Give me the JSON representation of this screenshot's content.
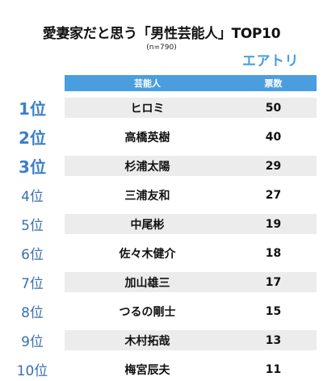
{
  "title": "愛妻家だと思う「男性芸能人」TOP10",
  "sample": "(n=790)",
  "logo": "エアトリ",
  "header": {
    "name": "芸能人",
    "votes": "票数"
  },
  "chart_data": {
    "type": "table",
    "title": "愛妻家だと思う「男性芸能人」TOP10",
    "columns": [
      "芸能人",
      "票数"
    ],
    "rows": [
      {
        "rank": "1位",
        "name": "ヒロミ",
        "votes": 50
      },
      {
        "rank": "2位",
        "name": "高橋英樹",
        "votes": 40
      },
      {
        "rank": "3位",
        "name": "杉浦太陽",
        "votes": 29
      },
      {
        "rank": "4位",
        "name": "三浦友和",
        "votes": 27
      },
      {
        "rank": "5位",
        "name": "中尾彬",
        "votes": 19
      },
      {
        "rank": "6位",
        "name": "佐々木健介",
        "votes": 18
      },
      {
        "rank": "7位",
        "name": "加山雄三",
        "votes": 17
      },
      {
        "rank": "8位",
        "name": "つるの剛士",
        "votes": 15
      },
      {
        "rank": "9位",
        "name": "木村拓哉",
        "votes": 13
      },
      {
        "rank": "10位",
        "name": "梅宮辰夫",
        "votes": 11
      }
    ]
  }
}
